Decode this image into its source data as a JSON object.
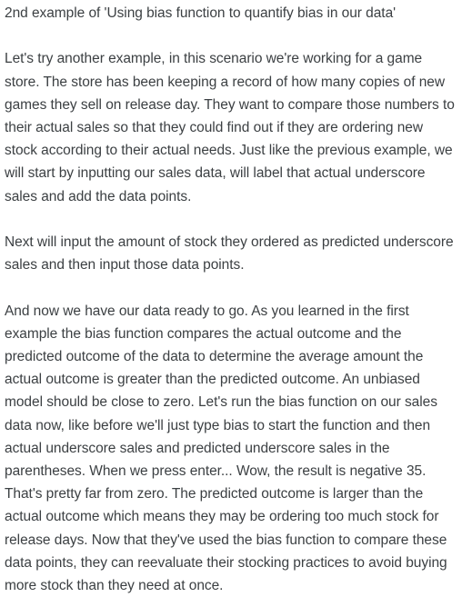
{
  "document": {
    "title": "2nd example of 'Using bias function to quantify bias in our data'",
    "paragraphs": [
      "Let's try another example, in this scenario we're working for a game store. The store has been keeping a record of how many copies of new games they sell on release day. They want to compare those numbers to their actual sales so that they could find out if they are ordering new stock according to their actual needs. Just like the previous example, we will start by inputting our sales data, will label that actual underscore sales and add the data points.",
      "Next will input the amount of stock they ordered as predicted underscore sales and then input those data points.",
      "And now we have our data ready to go. As you learned in the first example the bias function compares the actual outcome and the predicted outcome of the data to determine the average amount the actual outcome is greater than the predicted outcome. An unbiased model should be close to zero. Let's run the bias function on our sales data now, like before we'll just type bias to start the function and then actual underscore sales and predicted underscore sales in the parentheses. When we press enter... Wow, the result is negative 35. That's pretty far from zero. The predicted outcome is larger than the actual outcome which means they may be ordering too much stock for release days. Now that they've used the bias function to compare these data points, they can reevaluate their stocking practices to avoid buying more stock than they need at once."
    ]
  }
}
